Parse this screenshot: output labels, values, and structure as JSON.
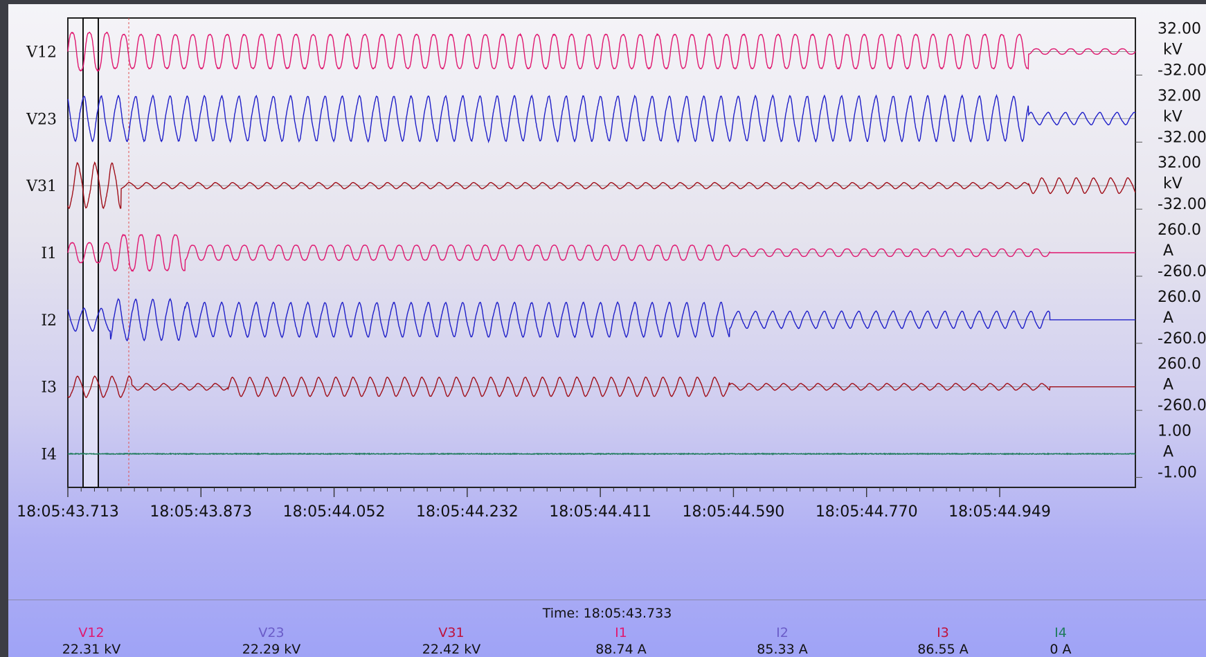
{
  "chart_data": {
    "type": "line",
    "title": "",
    "x_ticks": [
      "18:05:43.713",
      "18:05:43.873",
      "18:05:44.052",
      "18:05:44.232",
      "18:05:44.411",
      "18:05:44.590",
      "18:05:44.770",
      "18:05:44.949"
    ],
    "xlim": [
      "18:05:43.713",
      "18:05:44.949"
    ],
    "grid": false,
    "cursor_time": "18:05:43.733",
    "series": [
      {
        "name": "V12",
        "color": "#e0176f",
        "unit": "kV",
        "scale_top": "32.00",
        "scale_unit": "kV",
        "scale_bottom": "-32.00",
        "ylim": [
          -32,
          32
        ],
        "events": [
          {
            "t": 0.0,
            "amp": 28
          },
          {
            "t": 0.04,
            "amp": 25
          },
          {
            "t": 0.9,
            "amp": 4
          }
        ]
      },
      {
        "name": "V23",
        "color": "#1f1fc8",
        "unit": "kV",
        "scale_top": "32.00",
        "scale_unit": "kV",
        "scale_bottom": "-32.00",
        "ylim": [
          -32,
          32
        ],
        "events": [
          {
            "t": 0.0,
            "amp": 29
          },
          {
            "t": 0.9,
            "amp": 8
          }
        ]
      },
      {
        "name": "V31",
        "color": "#a0101a",
        "unit": "kV",
        "scale_top": "32.00",
        "scale_unit": "kV",
        "scale_bottom": "-32.00",
        "ylim": [
          -32,
          32
        ],
        "events": [
          {
            "t": 0.0,
            "amp": 29
          },
          {
            "t": 0.05,
            "amp": 4
          },
          {
            "t": 0.9,
            "amp": 10
          }
        ]
      },
      {
        "name": "I1",
        "color": "#e0176f",
        "unit": "A",
        "scale_top": "260.0",
        "scale_unit": "A",
        "scale_bottom": "-260.0",
        "ylim": [
          -260,
          260
        ],
        "events": [
          {
            "t": 0.0,
            "amp": 120
          },
          {
            "t": 0.04,
            "amp": 215
          },
          {
            "t": 0.11,
            "amp": 90
          },
          {
            "t": 0.62,
            "amp": 45
          },
          {
            "t": 0.92,
            "amp": 0
          }
        ]
      },
      {
        "name": "I2",
        "color": "#1f1fc8",
        "unit": "A",
        "scale_top": "260.0",
        "scale_unit": "A",
        "scale_bottom": "-260.0",
        "ylim": [
          -260,
          260
        ],
        "events": [
          {
            "t": 0.0,
            "amp": 120
          },
          {
            "t": 0.04,
            "amp": 215
          },
          {
            "t": 0.11,
            "amp": 180
          },
          {
            "t": 0.62,
            "amp": 90
          },
          {
            "t": 0.92,
            "amp": 0
          }
        ]
      },
      {
        "name": "I3",
        "color": "#a0101a",
        "unit": "A",
        "scale_top": "260.0",
        "scale_unit": "A",
        "scale_bottom": "-260.0",
        "ylim": [
          -260,
          260
        ],
        "events": [
          {
            "t": 0.0,
            "amp": 110
          },
          {
            "t": 0.06,
            "amp": 35
          },
          {
            "t": 0.15,
            "amp": 100
          },
          {
            "t": 0.62,
            "amp": 35
          },
          {
            "t": 0.92,
            "amp": 0
          }
        ]
      },
      {
        "name": "I4",
        "color": "#1d7a5a",
        "unit": "A",
        "scale_top": "1.00",
        "scale_unit": "A",
        "scale_bottom": "-1.00",
        "ylim": [
          -1,
          1
        ],
        "events": [
          {
            "t": 0.0,
            "amp": 0.02
          }
        ]
      }
    ],
    "readout": [
      {
        "name": "V12",
        "value": "22.31 kV",
        "color": "#e0176f"
      },
      {
        "name": "V23",
        "value": "22.29 kV",
        "color": "#6a5cc8"
      },
      {
        "name": "V31",
        "value": "22.42 kV",
        "color": "#c0103a"
      },
      {
        "name": "I1",
        "value": "88.74 A",
        "color": "#e0176f"
      },
      {
        "name": "I2",
        "value": "85.33 A",
        "color": "#6a5cc8"
      },
      {
        "name": "I3",
        "value": "86.55 A",
        "color": "#c0103a"
      },
      {
        "name": "I4",
        "value": "0 A",
        "color": "#1d7a5a"
      }
    ],
    "time_label": "Time:"
  }
}
